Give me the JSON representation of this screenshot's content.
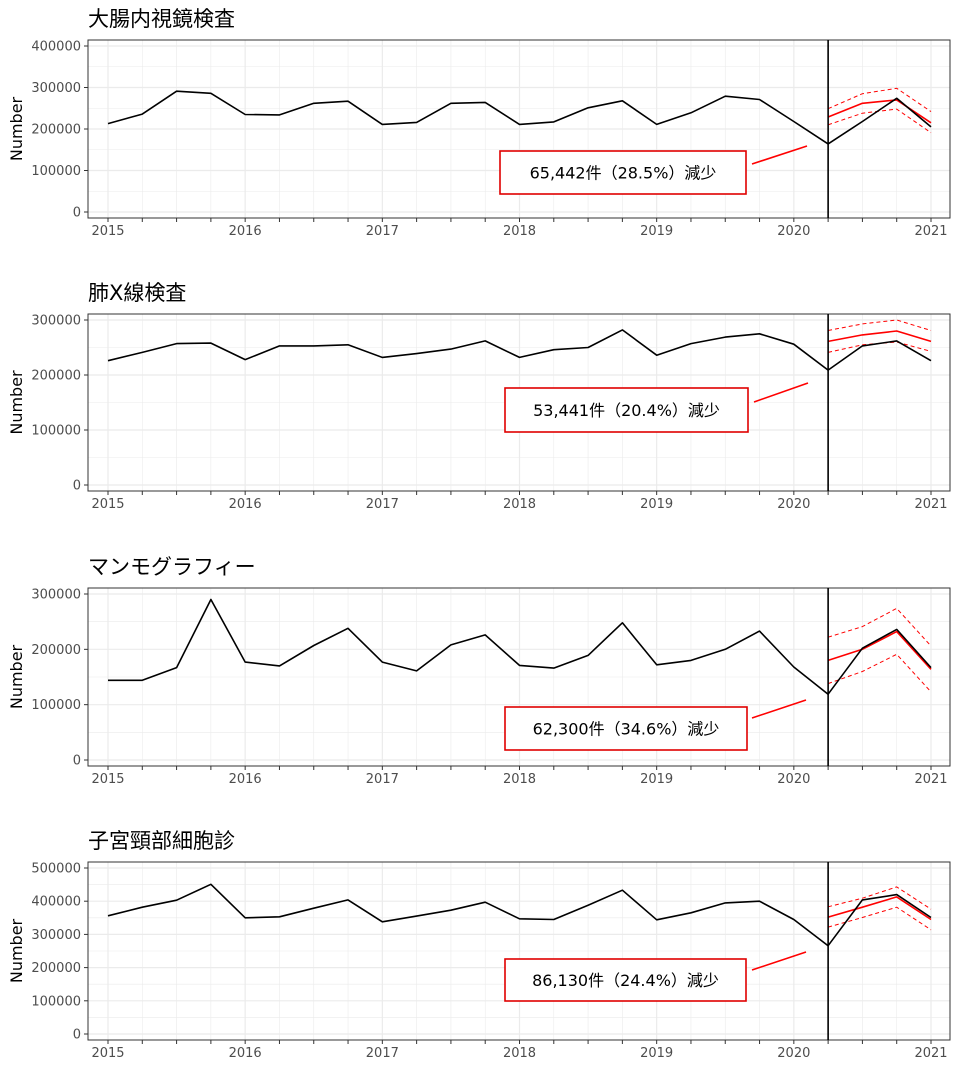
{
  "chart_data": [
    {
      "type": "line",
      "title": "大腸内視鏡検査",
      "ylabel": "Number",
      "ylim": [
        0,
        400000
      ],
      "yticks": [
        0,
        100000,
        200000,
        300000,
        400000
      ],
      "xlim": [
        2015,
        2021
      ],
      "xticks": [
        2015,
        2016,
        2017,
        2018,
        2019,
        2020,
        2021
      ],
      "grid": true,
      "vline_x": 2020.25,
      "series": [
        {
          "values": [
            213000,
            236000,
            291000,
            286000,
            235000,
            234000,
            262000,
            267000,
            211000,
            216000,
            262000,
            264000,
            211000,
            217000,
            251000,
            268000,
            211000,
            239000,
            279000,
            271000,
            218000,
            164000,
            218000,
            274000,
            205000
          ]
        },
        {
          "values": [
            229000,
            262000,
            270000,
            215000
          ]
        },
        {
          "values": [
            249000,
            285000,
            298000,
            242000
          ]
        },
        {
          "values": [
            210000,
            238000,
            248000,
            191000
          ]
        }
      ],
      "x_start": 2015,
      "forecast_x_start": 2020.25,
      "x_step": 0.25,
      "annotation": "65,442件（28.5%）減少"
    },
    {
      "type": "line",
      "title": "肺X線検査",
      "ylabel": "Number",
      "ylim": [
        0,
        300000
      ],
      "yticks": [
        0,
        100000,
        200000,
        300000
      ],
      "xlim": [
        2015,
        2021
      ],
      "xticks": [
        2015,
        2016,
        2017,
        2018,
        2019,
        2020,
        2021
      ],
      "grid": true,
      "vline_x": 2020.25,
      "series": [
        {
          "values": [
            226000,
            241000,
            257000,
            258000,
            228000,
            253000,
            253000,
            255000,
            232000,
            239000,
            247000,
            262000,
            232000,
            246000,
            250000,
            282000,
            236000,
            257000,
            269000,
            275000,
            256000,
            209000,
            253000,
            262000,
            226000
          ]
        },
        {
          "values": [
            261000,
            273000,
            280000,
            261000
          ]
        },
        {
          "values": [
            281000,
            293000,
            300000,
            281000
          ]
        },
        {
          "values": [
            241000,
            255000,
            260000,
            243000
          ]
        }
      ],
      "x_start": 2015,
      "forecast_x_start": 2020.25,
      "x_step": 0.25,
      "annotation": "53,441件（20.4%）減少"
    },
    {
      "type": "line",
      "title": "マンモグラフィー",
      "ylabel": "Number",
      "ylim": [
        0,
        300000
      ],
      "yticks": [
        0,
        100000,
        200000,
        300000
      ],
      "xlim": [
        2015,
        2021
      ],
      "xticks": [
        2015,
        2016,
        2017,
        2018,
        2019,
        2020,
        2021
      ],
      "grid": true,
      "vline_x": 2020.25,
      "series": [
        {
          "values": [
            144000,
            144000,
            167000,
            290000,
            177000,
            170000,
            207000,
            238000,
            177000,
            161000,
            208000,
            226000,
            171000,
            166000,
            189000,
            248000,
            172000,
            180000,
            200000,
            233000,
            168000,
            119000,
            202000,
            236000,
            167000
          ]
        },
        {
          "values": [
            180000,
            200000,
            232000,
            164000
          ]
        },
        {
          "values": [
            222000,
            241000,
            274000,
            206000
          ]
        },
        {
          "values": [
            138000,
            160000,
            191000,
            123000
          ]
        }
      ],
      "x_start": 2015,
      "forecast_x_start": 2020.25,
      "x_step": 0.25,
      "annotation": "62,300件（34.6%）減少"
    },
    {
      "type": "line",
      "title": "子宮頸部細胞診",
      "ylabel": "Number",
      "ylim": [
        0,
        500000
      ],
      "yticks": [
        0,
        100000,
        200000,
        300000,
        400000,
        500000
      ],
      "xlim": [
        2015,
        2021
      ],
      "xticks": [
        2015,
        2016,
        2017,
        2018,
        2019,
        2020,
        2021
      ],
      "grid": true,
      "vline_x": 2020.25,
      "series": [
        {
          "values": [
            356000,
            382000,
            403000,
            451000,
            350000,
            353000,
            379000,
            404000,
            338000,
            355000,
            373000,
            397000,
            347000,
            345000,
            388000,
            433000,
            344000,
            365000,
            395000,
            400000,
            345000,
            266000,
            404000,
            420000,
            351000
          ]
        },
        {
          "values": [
            352000,
            382000,
            413000,
            345000
          ]
        },
        {
          "values": [
            383000,
            409000,
            443000,
            376000
          ]
        },
        {
          "values": [
            322000,
            351000,
            382000,
            314000
          ]
        }
      ],
      "x_start": 2015,
      "forecast_x_start": 2020.25,
      "x_step": 0.25,
      "annotation": "86,130件（24.4%）減少"
    }
  ],
  "colors": {
    "observed": "#000000",
    "forecast": "#ff0000",
    "grid": "#ebebeb",
    "border": "#333333"
  }
}
